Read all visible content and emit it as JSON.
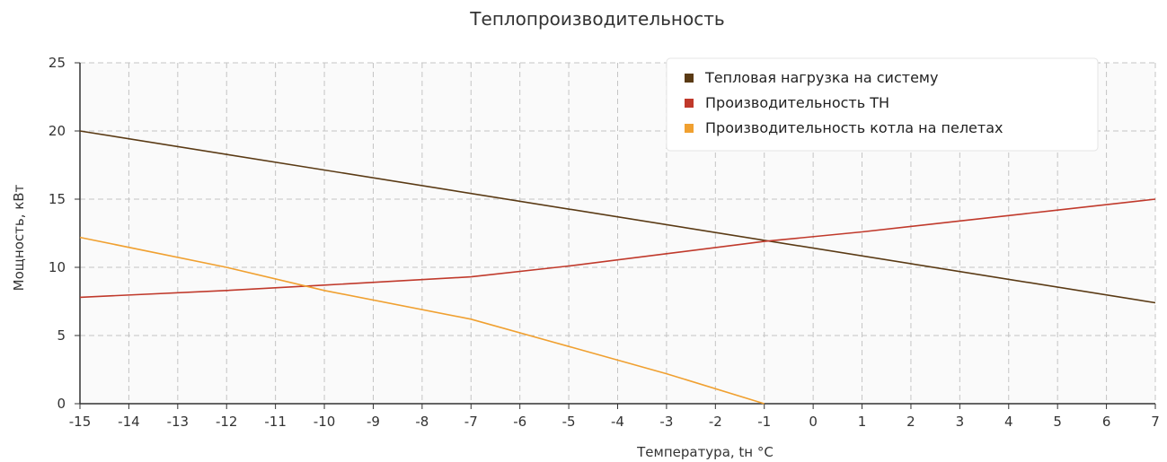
{
  "chart_data": {
    "type": "line",
    "title": "Теплопроизводительность",
    "xlabel": "Температура, tн °C",
    "ylabel": "Мощность, кВт",
    "xlim": [
      -15,
      7
    ],
    "ylim": [
      0,
      25
    ],
    "x_ticks": [
      "-15",
      "-14",
      "-13",
      "-12",
      "-11",
      "-10",
      "-9",
      "-8",
      "-7",
      "-6",
      "-5",
      "-4",
      "-3",
      "-2",
      "-1",
      "0",
      "1",
      "2",
      "3",
      "4",
      "5",
      "6",
      "7"
    ],
    "y_ticks": [
      "0",
      "5",
      "10",
      "15",
      "20",
      "25"
    ],
    "grid": true,
    "legend_position": "top-right",
    "series": [
      {
        "name": "Тепловая нагрузка на систему",
        "color": "#5a3a14",
        "points": [
          [
            -15,
            20.0
          ],
          [
            7,
            7.4
          ]
        ]
      },
      {
        "name": "Производительность ТН",
        "color": "#c0392b",
        "points": [
          [
            -15,
            7.8
          ],
          [
            -12,
            8.3
          ],
          [
            -10,
            8.7
          ],
          [
            -7,
            9.3
          ],
          [
            -5,
            10.1
          ],
          [
            -3,
            11.0
          ],
          [
            -1,
            11.9
          ],
          [
            1,
            12.6
          ],
          [
            3,
            13.4
          ],
          [
            5,
            14.2
          ],
          [
            7,
            15.0
          ]
        ]
      },
      {
        "name": "Производительность котла на пелетах",
        "color": "#f0a030",
        "points": [
          [
            -15,
            12.2
          ],
          [
            -12,
            10.0
          ],
          [
            -10,
            8.3
          ],
          [
            -7,
            6.2
          ],
          [
            -5,
            4.2
          ],
          [
            -3,
            2.2
          ],
          [
            -1,
            0.0
          ]
        ]
      }
    ]
  }
}
